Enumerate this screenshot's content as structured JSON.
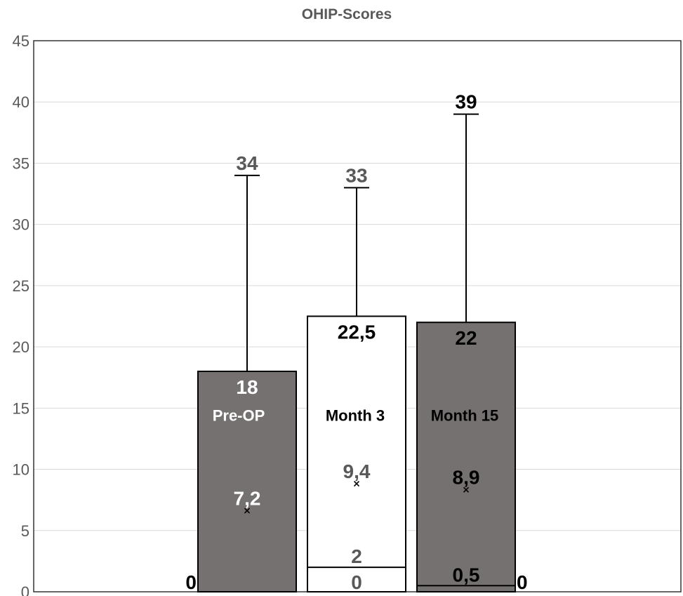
{
  "chart_data": {
    "type": "boxplot",
    "title": "OHIP-Scores",
    "xlabel": "",
    "ylabel": "",
    "ylim": [
      0,
      45
    ],
    "yticks": [
      "0",
      "5",
      "10",
      "15",
      "20",
      "25",
      "30",
      "35",
      "40",
      "45"
    ],
    "grid": true,
    "series": [
      {
        "name": "Pre-OP",
        "min": 0,
        "q1": 0,
        "median": 0,
        "q3": 18,
        "max": 34,
        "mean": 7.2,
        "labels": {
          "min": "0",
          "q3": "18",
          "max": "34",
          "mean": "7,2"
        },
        "fill": "#767171",
        "text_color": "#ffffff",
        "max_label_color": "#595959"
      },
      {
        "name": "Month 3",
        "min": 0,
        "q1": 0,
        "median": 2,
        "q3": 22.5,
        "max": 33,
        "mean": 9.4,
        "labels": {
          "min": "0",
          "median": "2",
          "q3": "22,5",
          "max": "33",
          "mean": "9,4"
        },
        "fill": "#ffffff",
        "text_color": "#000000",
        "max_label_color": "#595959",
        "inner_label_color": "#595959"
      },
      {
        "name": "Month 15",
        "min": 0,
        "q1": 0,
        "median": 0.5,
        "q3": 22,
        "max": 39,
        "mean": 8.9,
        "labels": {
          "min": "0",
          "median": "0,5",
          "q3": "22",
          "max": "39",
          "mean": "8,9"
        },
        "fill": "#767171",
        "text_color": "#000000",
        "max_label_color": "#000000"
      }
    ]
  }
}
